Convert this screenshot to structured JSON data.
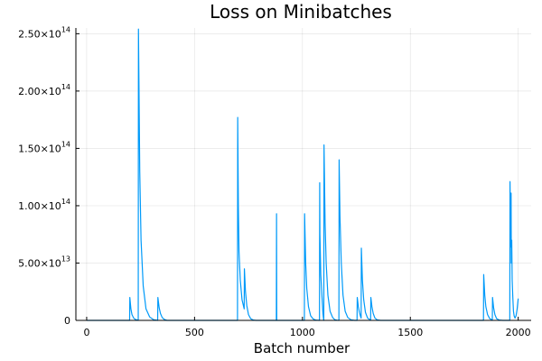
{
  "chart_data": {
    "type": "line",
    "title": "Loss on Minibatches",
    "xlabel": "Batch number",
    "ylabel": "",
    "xlim": [
      -50,
      2060
    ],
    "ylim": [
      0,
      255000000000000.0
    ],
    "grid": true,
    "legend": "none",
    "xticks": [
      {
        "value": 0,
        "label": "0"
      },
      {
        "value": 500,
        "label": "500"
      },
      {
        "value": 1000,
        "label": "1000"
      },
      {
        "value": 1500,
        "label": "1500"
      },
      {
        "value": 2000,
        "label": "2000"
      }
    ],
    "yticks": [
      {
        "value": 0,
        "mant": "0",
        "exp": ""
      },
      {
        "value": 50000000000000.0,
        "mant": "5.00×10",
        "exp": "13"
      },
      {
        "value": 100000000000000.0,
        "mant": "1.00×10",
        "exp": "14"
      },
      {
        "value": 150000000000000.0,
        "mant": "1.50×10",
        "exp": "14"
      },
      {
        "value": 200000000000000.0,
        "mant": "2.00×10",
        "exp": "14"
      },
      {
        "value": 250000000000000.0,
        "mant": "2.50×10",
        "exp": "14"
      }
    ],
    "series": [
      {
        "color": "#009af9",
        "x": [
          0,
          199,
          200,
          205,
          210,
          218,
          226,
          238,
          239,
          240,
          246,
          252,
          262,
          275,
          292,
          310,
          329,
          330,
          336,
          342,
          350,
          360,
          372,
          699,
          700,
          703,
          706,
          712,
          720,
          730,
          731,
          736,
          742,
          750,
          760,
          772,
          784,
          879,
          880,
          881,
          1009,
          1010,
          1015,
          1020,
          1028,
          1038,
          1050,
          1063,
          1079,
          1080,
          1081,
          1085,
          1092,
          1095,
          1098,
          1099,
          1100,
          1105,
          1110,
          1118,
          1128,
          1140,
          1150,
          1160,
          1169,
          1170,
          1174,
          1180,
          1188,
          1198,
          1210,
          1225,
          1242,
          1253,
          1254,
          1259,
          1264,
          1270,
          1272,
          1273,
          1278,
          1284,
          1292,
          1302,
          1314,
          1316,
          1317,
          1322,
          1328,
          1336,
          1346,
          1362,
          1839,
          1840,
          1845,
          1850,
          1858,
          1868,
          1880,
          1881,
          1886,
          1892,
          1900,
          1912,
          1928,
          1960,
          1961,
          1962,
          1965,
          1967,
          1968,
          1970,
          1972,
          1975,
          1978,
          1981,
          1985,
          1990,
          1995,
          2000
        ],
        "y": [
          0,
          0,
          20000000000000.0,
          10000000000000.0,
          5000000000000.0,
          2000000000000.0,
          800000000000.0,
          100000000000.0,
          0,
          254000000000000.0,
          130000000000000.0,
          70000000000000.0,
          30000000000000.0,
          10000000000000.0,
          3000000000000.0,
          600000000000.0,
          0,
          20000000000000.0,
          11000000000000.0,
          6000000000000.0,
          2500000000000.0,
          800000000000.0,
          0,
          0,
          177000000000000.0,
          100000000000000.0,
          60000000000000.0,
          35000000000000.0,
          18000000000000.0,
          10000000000000.0,
          45000000000000.0,
          25000000000000.0,
          13000000000000.0,
          5000000000000.0,
          1500000000000.0,
          300000000000.0,
          0,
          0,
          93000000000000.0,
          0,
          0,
          93000000000000.0,
          50000000000000.0,
          28000000000000.0,
          12000000000000.0,
          4000000000000.0,
          1200000000000.0,
          200000000000.0,
          0,
          120000000000000.0,
          75000000000000.0,
          40000000000000.0,
          16000000000000.0,
          6000000000000.0,
          1000000000000.0,
          0,
          153000000000000.0,
          85000000000000.0,
          50000000000000.0,
          22000000000000.0,
          8000000000000.0,
          2500000000000.0,
          600000000000.0,
          100000000000.0,
          0,
          140000000000000.0,
          90000000000000.0,
          50000000000000.0,
          22000000000000.0,
          8000000000000.0,
          2500000000000.0,
          500000000000.0,
          0,
          0,
          20000000000000.0,
          12000000000000.0,
          7000000000000.0,
          3000000000000.0,
          2000000000000.0,
          63000000000000.0,
          35000000000000.0,
          18000000000000.0,
          7000000000000.0,
          2000000000000.0,
          500000000000.0,
          300000000000.0,
          20000000000000.0,
          12000000000000.0,
          6000000000000.0,
          2000000000000.0,
          500000000000.0,
          0,
          0,
          40000000000000.0,
          22000000000000.0,
          12000000000000.0,
          5000000000000.0,
          1500000000000.0,
          300000000000.0,
          20000000000000.0,
          11000000000000.0,
          5000000000000.0,
          1500000000000.0,
          300000000000.0,
          0,
          0,
          0,
          121000000000000.0,
          64000000000000.0,
          111000000000000.0,
          50000000000000.0,
          70000000000000.0,
          35000000000000.0,
          20000000000000.0,
          8000000000000.0,
          4000000000000.0,
          2000000000000.0,
          4000000000000.0,
          10000000000000.0,
          19000000000000.0
        ]
      }
    ]
  }
}
